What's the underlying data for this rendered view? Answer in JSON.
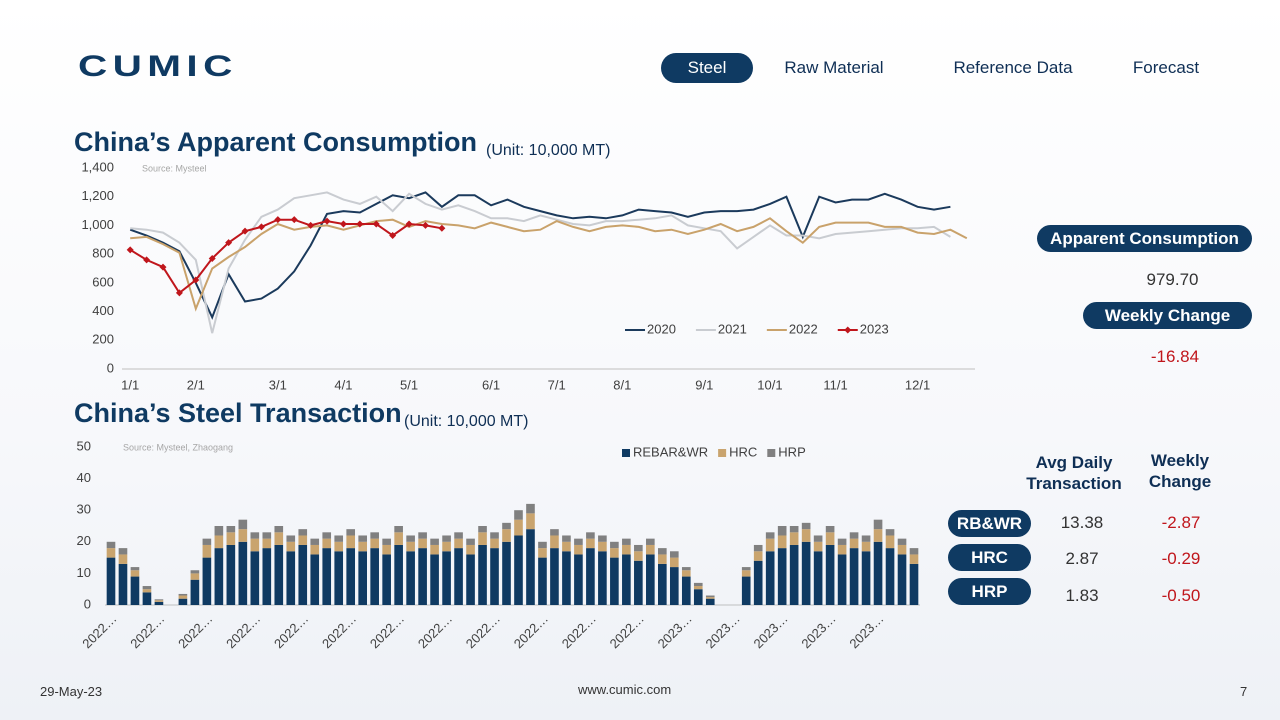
{
  "header": {
    "logo": "CUMIC",
    "nav": [
      "Steel",
      "Raw Material",
      "Reference Data",
      "Forecast"
    ],
    "active": 0
  },
  "chart_data": [
    {
      "type": "line",
      "title": "China’s Apparent Consumption",
      "subtitle": "(Unit: 10,000 MT)",
      "source": "Source: Mysteel",
      "categories": [
        "1/1",
        null,
        null,
        null,
        "2/1",
        null,
        null,
        null,
        null,
        "3/1",
        null,
        null,
        null,
        "4/1",
        null,
        null,
        null,
        "5/1",
        null,
        null,
        null,
        null,
        "6/1",
        null,
        null,
        null,
        "7/1",
        null,
        null,
        null,
        "8/1",
        null,
        null,
        null,
        null,
        "9/1",
        null,
        null,
        null,
        "10/1",
        null,
        null,
        null,
        "11/1",
        null,
        null,
        null,
        null,
        "12/1",
        null,
        null,
        null
      ],
      "series": [
        {
          "name": "2020",
          "color": "#1b3a5c",
          "values": [
            970,
            930,
            880,
            820,
            600,
            360,
            660,
            470,
            490,
            560,
            680,
            860,
            1080,
            1100,
            1090,
            1150,
            1210,
            1190,
            1230,
            1130,
            1210,
            1210,
            1140,
            1180,
            1130,
            1100,
            1070,
            1050,
            1060,
            1050,
            1070,
            1110,
            1100,
            1090,
            1060,
            1090,
            1100,
            1100,
            1110,
            1150,
            1200,
            920,
            1200,
            1160,
            1180,
            1180,
            1220,
            1180,
            1130,
            1110,
            1130,
            null
          ]
        },
        {
          "name": "2021",
          "color": "#c9ccd1",
          "values": [
            980,
            970,
            950,
            880,
            760,
            250,
            700,
            900,
            1060,
            1110,
            1190,
            1210,
            1230,
            1180,
            1150,
            1200,
            1100,
            1220,
            1150,
            1110,
            1140,
            1100,
            1050,
            1050,
            1030,
            1070,
            1040,
            1010,
            1000,
            1030,
            1030,
            1040,
            1050,
            1070,
            1000,
            980,
            960,
            840,
            920,
            1000,
            930,
            930,
            910,
            940,
            950,
            960,
            970,
            980,
            980,
            990,
            920,
            null
          ]
        },
        {
          "name": "2022",
          "color": "#c9a26b",
          "values": [
            910,
            920,
            870,
            810,
            420,
            700,
            780,
            850,
            940,
            1010,
            970,
            990,
            1000,
            970,
            1000,
            1030,
            1040,
            990,
            1030,
            1010,
            1000,
            980,
            1020,
            990,
            960,
            970,
            1030,
            990,
            960,
            990,
            1000,
            990,
            960,
            970,
            940,
            970,
            1010,
            960,
            990,
            1050,
            960,
            880,
            990,
            1020,
            1020,
            1020,
            990,
            990,
            950,
            940,
            970,
            910
          ]
        },
        {
          "name": "2023",
          "color": "#c0161c",
          "marker": "diamond",
          "values": [
            830,
            760,
            710,
            530,
            620,
            770,
            880,
            960,
            990,
            1040,
            1040,
            1000,
            1030,
            1010,
            1010,
            1010,
            930,
            1010,
            1000,
            980,
            null,
            null,
            null,
            null,
            null,
            null,
            null,
            null,
            null,
            null,
            null,
            null,
            null,
            null,
            null,
            null,
            null,
            null,
            null,
            null,
            null,
            null,
            null,
            null,
            null,
            null,
            null,
            null,
            null,
            null,
            null,
            null
          ]
        }
      ],
      "ylim": [
        0,
        1400
      ],
      "yticks": [
        0,
        200,
        400,
        600,
        800,
        {
          "value": 1000,
          "label": "1,000"
        },
        {
          "value": 1200,
          "label": "1,200"
        },
        {
          "value": 1400,
          "label": "1,400"
        }
      ],
      "grid": false,
      "legend": "lower right"
    },
    {
      "type": "bar",
      "stacked": true,
      "title": "China’s Steel Transaction",
      "subtitle": "(Unit: 10,000 MT)",
      "source": "Source: Mysteel, Zhaogang",
      "categories": [
        "2022…",
        null,
        null,
        null,
        "2022…",
        null,
        null,
        null,
        "2022…",
        null,
        null,
        null,
        "2022…",
        null,
        null,
        null,
        "2022…",
        null,
        null,
        null,
        "2022…",
        null,
        null,
        null,
        "2022…",
        null,
        null,
        null,
        "2022…",
        null,
        null,
        null,
        "2022…",
        null,
        null,
        null,
        "2022…",
        null,
        null,
        null,
        "2022…",
        null,
        null,
        null,
        "2022…",
        null,
        null,
        null,
        "2023…",
        null,
        null,
        null,
        "2023…",
        null,
        null,
        null,
        "2023…",
        null,
        null,
        null,
        "2023…",
        null,
        null,
        null,
        "2023…",
        null,
        null,
        null
      ],
      "series": [
        {
          "name": "REBAR&WR",
          "color": "#0f3a62",
          "values": [
            15,
            13,
            9,
            4,
            1,
            null,
            2,
            8,
            15,
            18,
            19,
            20,
            17,
            18,
            19,
            17,
            19,
            16,
            18,
            17,
            18,
            17,
            18,
            16,
            19,
            17,
            18,
            16,
            17,
            18,
            16,
            19,
            18,
            20,
            22,
            24,
            15,
            18,
            17,
            16,
            18,
            17,
            15,
            16,
            14,
            16,
            13,
            12,
            9,
            5,
            2,
            null,
            null,
            9,
            14,
            17,
            18,
            19,
            20,
            17,
            19,
            16,
            18,
            17,
            20,
            18,
            16,
            13
          ]
        },
        {
          "name": "HRC",
          "color": "#c9a46e",
          "values": [
            3,
            3,
            2,
            1,
            0.5,
            null,
            1,
            2,
            4,
            4,
            4,
            4,
            4,
            3,
            4,
            3,
            3,
            3,
            3,
            3,
            4,
            3,
            3,
            3,
            4,
            3,
            3,
            3,
            3,
            3,
            3,
            4,
            3,
            4,
            5,
            5,
            3,
            4,
            3,
            3,
            3,
            3,
            3,
            3,
            3,
            3,
            3,
            3,
            2,
            1,
            0.5,
            null,
            null,
            2,
            3,
            4,
            4,
            4,
            4,
            3,
            4,
            3,
            3,
            3,
            4,
            4,
            3,
            3
          ]
        },
        {
          "name": "HRP",
          "color": "#808080",
          "values": [
            2,
            2,
            1,
            1,
            0.3,
            null,
            0.5,
            1,
            2,
            3,
            2,
            3,
            2,
            2,
            2,
            2,
            2,
            2,
            2,
            2,
            2,
            2,
            2,
            2,
            2,
            2,
            2,
            2,
            2,
            2,
            2,
            2,
            2,
            2,
            3,
            3,
            2,
            2,
            2,
            2,
            2,
            2,
            2,
            2,
            2,
            2,
            2,
            2,
            1,
            1,
            0.5,
            null,
            null,
            1,
            2,
            2,
            3,
            2,
            2,
            2,
            2,
            2,
            2,
            2,
            3,
            2,
            2,
            2
          ]
        }
      ],
      "ylim": [
        0,
        50
      ],
      "yticks": [
        0,
        10,
        20,
        30,
        40,
        50
      ],
      "grid": false,
      "legend": "upper center"
    }
  ],
  "consumption_panel": {
    "label": "Apparent Consumption",
    "value": "979.70",
    "change_label": "Weekly Change",
    "change": "-16.84"
  },
  "transaction_table": {
    "headers": [
      "Avg Daily Transaction",
      "Weekly Change"
    ],
    "rows": [
      [
        "RB&WR",
        "13.38",
        "-2.87"
      ],
      [
        "HRC",
        "2.87",
        "-0.29"
      ],
      [
        "HRP",
        "1.83",
        "-0.50"
      ]
    ]
  },
  "footer": {
    "date": "29-May-23",
    "url": "www.cumic.com",
    "page": "7"
  }
}
